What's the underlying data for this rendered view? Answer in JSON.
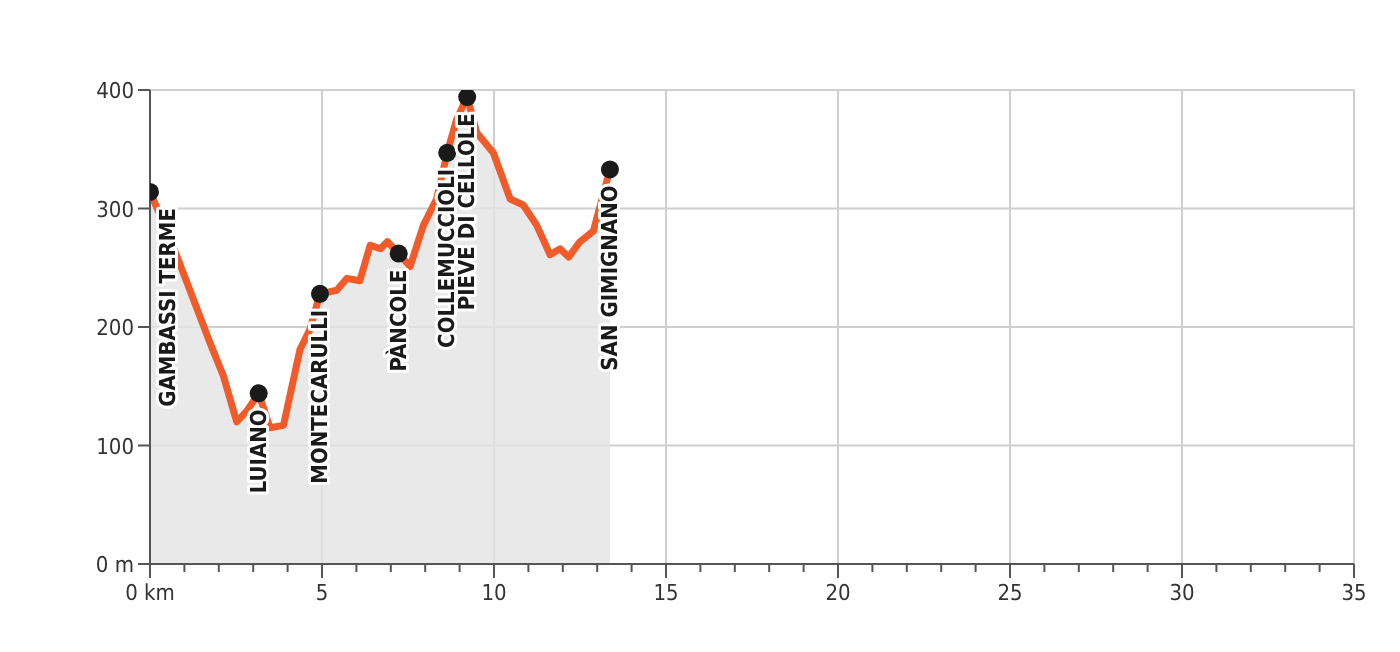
{
  "chart_data": {
    "type": "area",
    "color": "#f15a29",
    "x": [
      0,
      0.58,
      1.16,
      1.74,
      2.13,
      2.52,
      2.81,
      3.16,
      3.49,
      3.88,
      4.36,
      4.65,
      4.94,
      5.43,
      5.72,
      6.1,
      6.4,
      6.7,
      6.9,
      7.23,
      7.56,
      7.95,
      8.33,
      8.64,
      8.91,
      9.22,
      9.5,
      9.98,
      10.47,
      10.85,
      11.24,
      11.63,
      11.92,
      12.17,
      12.5,
      12.89,
      13.37
    ],
    "values": [
      314,
      275,
      231,
      187,
      159,
      120,
      129,
      144,
      115,
      117,
      181,
      198,
      228,
      231,
      241,
      239,
      269,
      266,
      272,
      262,
      251,
      286,
      308,
      347,
      375,
      394,
      364,
      347,
      308,
      303,
      286,
      261,
      266,
      259,
      272,
      281,
      333
    ],
    "series": [
      {
        "type": "scatter",
        "color": "#1a1a1a",
        "marker": "circle",
        "x": [
          0,
          3.16,
          4.94,
          7.23,
          8.64,
          9.22,
          13.37
        ],
        "values": [
          314,
          144,
          228,
          262,
          347,
          394,
          333
        ]
      }
    ],
    "annotations": [
      {
        "text": "GAMBASSI TERME",
        "x": 0,
        "y": 314
      },
      {
        "text": "LUIANO",
        "x": 3.16,
        "y": 144
      },
      {
        "text": "MONTECARULLI",
        "x": 4.94,
        "y": 228
      },
      {
        "text": "PÀNCOLE",
        "x": 7.23,
        "y": 262
      },
      {
        "text": "COLLEMUCCIOLI",
        "x": 8.64,
        "y": 347
      },
      {
        "text": "PIEVE DI CELLOLE",
        "x": 9.22,
        "y": 394
      },
      {
        "text": "SAN GIMIGNANO",
        "x": 13.37,
        "y": 333
      }
    ],
    "xlim": [
      0,
      35
    ],
    "xticks": [
      {
        "value": 0,
        "label": "0 km"
      },
      {
        "value": 1,
        "label": null
      },
      {
        "value": 2,
        "label": null
      },
      {
        "value": 3,
        "label": null
      },
      {
        "value": 4,
        "label": null
      },
      5,
      {
        "value": 6,
        "label": null
      },
      {
        "value": 7,
        "label": null
      },
      {
        "value": 8,
        "label": null
      },
      {
        "value": 9,
        "label": null
      },
      10,
      {
        "value": 11,
        "label": null
      },
      {
        "value": 12,
        "label": null
      },
      {
        "value": 13,
        "label": null
      },
      {
        "value": 14,
        "label": null
      },
      15,
      {
        "value": 16,
        "label": null
      },
      {
        "value": 17,
        "label": null
      },
      {
        "value": 18,
        "label": null
      },
      {
        "value": 19,
        "label": null
      },
      20,
      {
        "value": 21,
        "label": null
      },
      {
        "value": 22,
        "label": null
      },
      {
        "value": 23,
        "label": null
      },
      {
        "value": 24,
        "label": null
      },
      25,
      {
        "value": 26,
        "label": null
      },
      {
        "value": 27,
        "label": null
      },
      {
        "value": 28,
        "label": null
      },
      {
        "value": 29,
        "label": null
      },
      30,
      {
        "value": 31,
        "label": null
      },
      {
        "value": 32,
        "label": null
      },
      {
        "value": 33,
        "label": null
      },
      {
        "value": 34,
        "label": null
      },
      35
    ],
    "ylim": [
      0,
      400
    ],
    "yticks": [
      {
        "value": 0,
        "label": "0 m"
      },
      100,
      200,
      300,
      400
    ],
    "grid": true,
    "line_style": "solid"
  }
}
